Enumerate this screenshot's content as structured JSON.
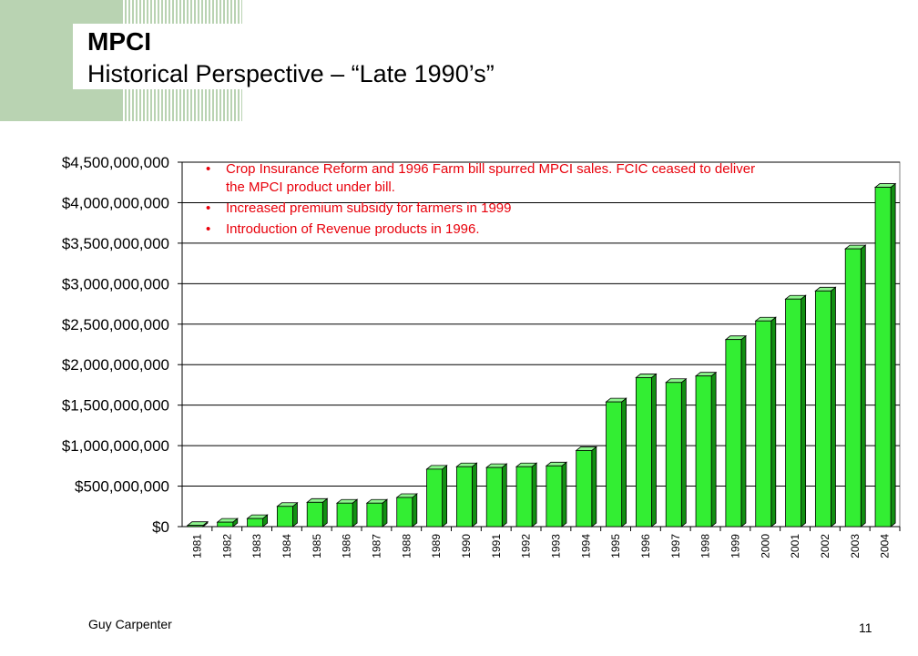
{
  "title": {
    "line1": "MPCI",
    "line2": "Historical Perspective – “Late 1990’s”"
  },
  "notes": [
    "Crop Insurance Reform and 1996 Farm bill spurred MPCI sales.  FCIC ceased to deliver the MPCI product under bill.",
    "Increased premium subsidy for farmers in 1999",
    "Introduction of Revenue products in 1996."
  ],
  "footer": {
    "company": "Guy Carpenter",
    "page": "11"
  },
  "colors": {
    "bar_front": "#33ee33",
    "bar_side": "#128f12",
    "bar_top": "#8cf58c",
    "note_text": "#e8000b",
    "decor": "#b9d3b2"
  },
  "chart_data": {
    "type": "bar",
    "categories": [
      "1981",
      "1982",
      "1983",
      "1984",
      "1985",
      "1986",
      "1987",
      "1988",
      "1989",
      "1990",
      "1991",
      "1992",
      "1993",
      "1994",
      "1995",
      "1996",
      "1997",
      "1998",
      "1999",
      "2000",
      "2001",
      "2002",
      "2003",
      "2004"
    ],
    "values": [
      15000000,
      55000000,
      100000000,
      250000000,
      300000000,
      290000000,
      290000000,
      360000000,
      710000000,
      740000000,
      730000000,
      740000000,
      750000000,
      940000000,
      1540000000,
      1840000000,
      1780000000,
      1860000000,
      2310000000,
      2540000000,
      2810000000,
      2910000000,
      3430000000,
      4190000000
    ],
    "yticks": [
      "$0",
      "$500,000,000",
      "$1,000,000,000",
      "$1,500,000,000",
      "$2,000,000,000",
      "$2,500,000,000",
      "$3,000,000,000",
      "$3,500,000,000",
      "$4,000,000,000",
      "$4,500,000,000"
    ],
    "ylim": [
      0,
      4500000000
    ],
    "grid": true,
    "legend": "none",
    "xlabel": "",
    "ylabel": ""
  }
}
